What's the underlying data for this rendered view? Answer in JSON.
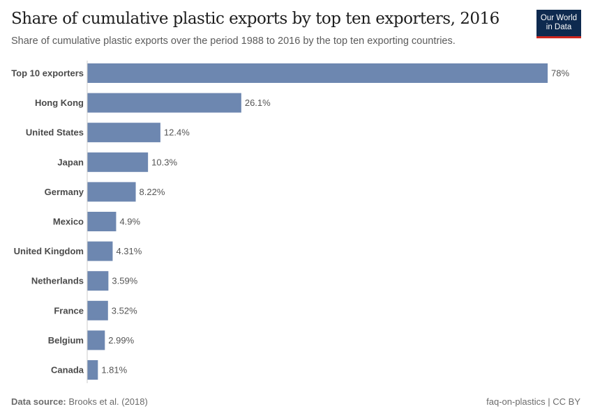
{
  "header": {
    "title": "Share of cumulative plastic exports by top ten exporters, 2016",
    "subtitle": "Share of cumulative plastic exports over the period 1988 to 2016 by the top ten exporting countries.",
    "logo_line1": "Our World",
    "logo_line2": "in Data"
  },
  "chart_data": {
    "type": "bar",
    "orientation": "horizontal",
    "title": "Share of cumulative plastic exports by top ten exporters, 2016",
    "categories": [
      "Top 10 exporters",
      "Hong Kong",
      "United States",
      "Japan",
      "Germany",
      "Mexico",
      "United Kingdom",
      "Netherlands",
      "France",
      "Belgium",
      "Canada"
    ],
    "values": [
      78,
      26.1,
      12.4,
      10.3,
      8.22,
      4.9,
      4.31,
      3.59,
      3.52,
      2.99,
      1.81
    ],
    "value_labels": [
      "78%",
      "26.1%",
      "12.4%",
      "10.3%",
      "8.22%",
      "4.9%",
      "4.31%",
      "3.59%",
      "3.52%",
      "2.99%",
      "1.81%"
    ],
    "unit": "%",
    "bar_color": "#6d87b0",
    "grid": false
  },
  "footer": {
    "source_label": "Data source:",
    "source_value": "Brooks et al. (2018)",
    "right_text": "faq-on-plastics | CC BY"
  }
}
